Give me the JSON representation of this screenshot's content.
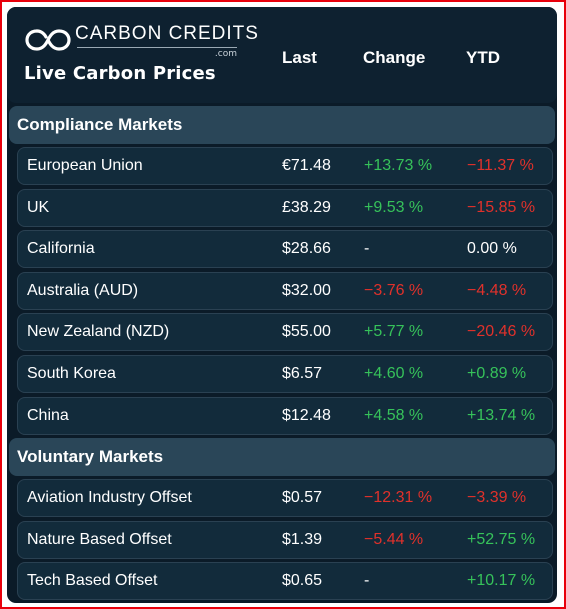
{
  "brand": {
    "name": "CARBON CREDITS",
    "domain": ".com",
    "subtitle": "Live Carbon Prices"
  },
  "columns": {
    "last": "Last",
    "change": "Change",
    "ytd": "YTD"
  },
  "colors": {
    "positive": "#36c25a",
    "negative": "#e0312b",
    "neutral": "#ffffff"
  },
  "sections": [
    {
      "title": "Compliance Markets",
      "rows": [
        {
          "name": "European Union",
          "last": "€71.48",
          "change": "+13.73 %",
          "change_dir": "up",
          "ytd": "−11.37 %",
          "ytd_dir": "down"
        },
        {
          "name": "UK",
          "last": "£38.29",
          "change": "+9.53 %",
          "change_dir": "up",
          "ytd": "−15.85 %",
          "ytd_dir": "down"
        },
        {
          "name": "California",
          "last": "$28.66",
          "change": "-",
          "change_dir": "flat",
          "ytd": "0.00 %",
          "ytd_dir": "flat"
        },
        {
          "name": "Australia (AUD)",
          "last": "$32.00",
          "change": "−3.76 %",
          "change_dir": "down",
          "ytd": "−4.48 %",
          "ytd_dir": "down"
        },
        {
          "name": "New Zealand (NZD)",
          "last": "$55.00",
          "change": "+5.77 %",
          "change_dir": "up",
          "ytd": "−20.46 %",
          "ytd_dir": "down"
        },
        {
          "name": "South Korea",
          "last": "$6.57",
          "change": "+4.60 %",
          "change_dir": "up",
          "ytd": "+0.89 %",
          "ytd_dir": "up"
        },
        {
          "name": "China",
          "last": "$12.48",
          "change": "+4.58 %",
          "change_dir": "up",
          "ytd": "+13.74 %",
          "ytd_dir": "up"
        }
      ]
    },
    {
      "title": "Voluntary Markets",
      "rows": [
        {
          "name": "Aviation Industry Offset",
          "last": "$0.57",
          "change": "−12.31 %",
          "change_dir": "down",
          "ytd": "−3.39 %",
          "ytd_dir": "down"
        },
        {
          "name": "Nature Based Offset",
          "last": "$1.39",
          "change": "−5.44 %",
          "change_dir": "down",
          "ytd": "+52.75 %",
          "ytd_dir": "up"
        },
        {
          "name": "Tech Based Offset",
          "last": "$0.65",
          "change": "-",
          "change_dir": "flat",
          "ytd": "+10.17 %",
          "ytd_dir": "up"
        }
      ]
    }
  ]
}
